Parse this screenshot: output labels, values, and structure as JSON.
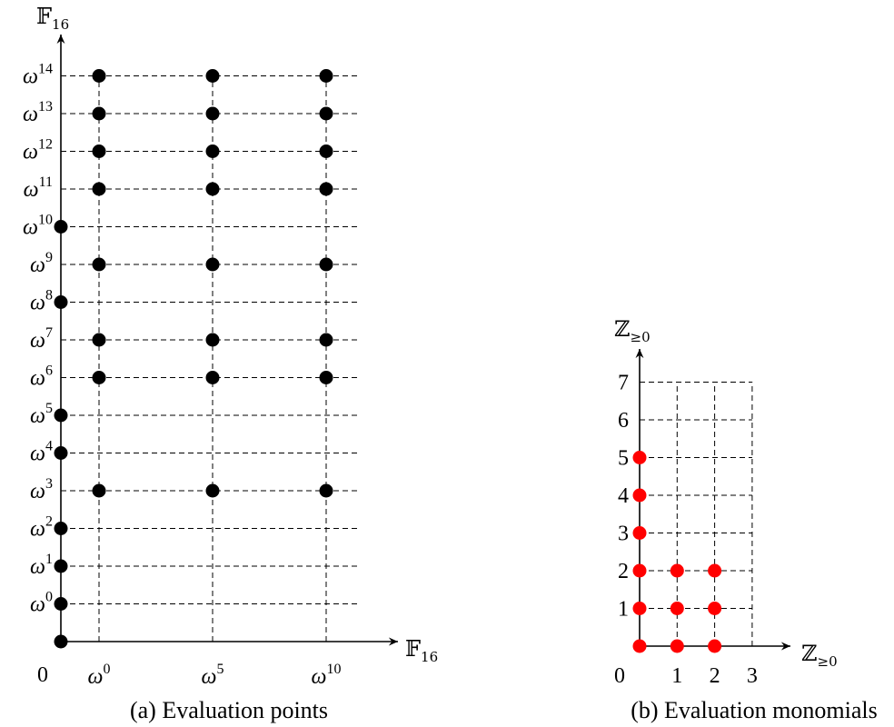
{
  "left_panel": {
    "caption": "(a) Evaluation points",
    "y_axis_title": "𝔽",
    "y_axis_subscript": "16",
    "x_axis_title": "𝔽",
    "x_axis_subscript": "16",
    "origin_label": "0",
    "y_tick_base": "ω",
    "y_tick_exponents": [
      "0",
      "1",
      "2",
      "3",
      "4",
      "5",
      "6",
      "7",
      "8",
      "9",
      "10",
      "11",
      "12",
      "13",
      "14"
    ],
    "x_tick_base": "ω",
    "x_tick_exponents": [
      "0",
      "5",
      "10"
    ]
  },
  "right_panel": {
    "caption": "(b) Evaluation monomials",
    "y_axis_title": "ℤ",
    "y_axis_subscript": "≥0",
    "x_axis_title": "ℤ",
    "x_axis_subscript": "≥0",
    "origin_label": "0",
    "y_ticks": [
      "1",
      "2",
      "3",
      "4",
      "5",
      "6",
      "7"
    ],
    "x_ticks": [
      "1",
      "2",
      "3"
    ]
  },
  "chart_data": [
    {
      "type": "scatter",
      "title": "",
      "point_color": "#000000",
      "x_categories": [
        "0",
        "ω^0",
        "ω^5",
        "ω^10"
      ],
      "y_categories": [
        "0",
        "ω^0",
        "ω^1",
        "ω^2",
        "ω^3",
        "ω^4",
        "ω^5",
        "ω^6",
        "ω^7",
        "ω^8",
        "ω^9",
        "ω^10",
        "ω^11",
        "ω^12",
        "ω^13",
        "ω^14"
      ],
      "axis_points": [
        "0",
        "ω^0",
        "ω^1",
        "ω^2",
        "ω^4",
        "ω^5",
        "ω^8",
        "ω^10"
      ],
      "grid_x": [
        "ω^0",
        "ω^5",
        "ω^10"
      ],
      "grid_y": [
        "ω^3",
        "ω^6",
        "ω^7",
        "ω^9",
        "ω^11",
        "ω^12",
        "ω^13",
        "ω^14"
      ]
    },
    {
      "type": "scatter",
      "title": "",
      "point_color": "#ff0000",
      "xlim": [
        0,
        3
      ],
      "ylim": [
        0,
        7
      ],
      "points": [
        [
          0,
          0
        ],
        [
          0,
          1
        ],
        [
          0,
          2
        ],
        [
          0,
          3
        ],
        [
          0,
          4
        ],
        [
          0,
          5
        ],
        [
          1,
          0
        ],
        [
          1,
          1
        ],
        [
          1,
          2
        ],
        [
          2,
          0
        ],
        [
          2,
          1
        ],
        [
          2,
          2
        ]
      ]
    }
  ]
}
